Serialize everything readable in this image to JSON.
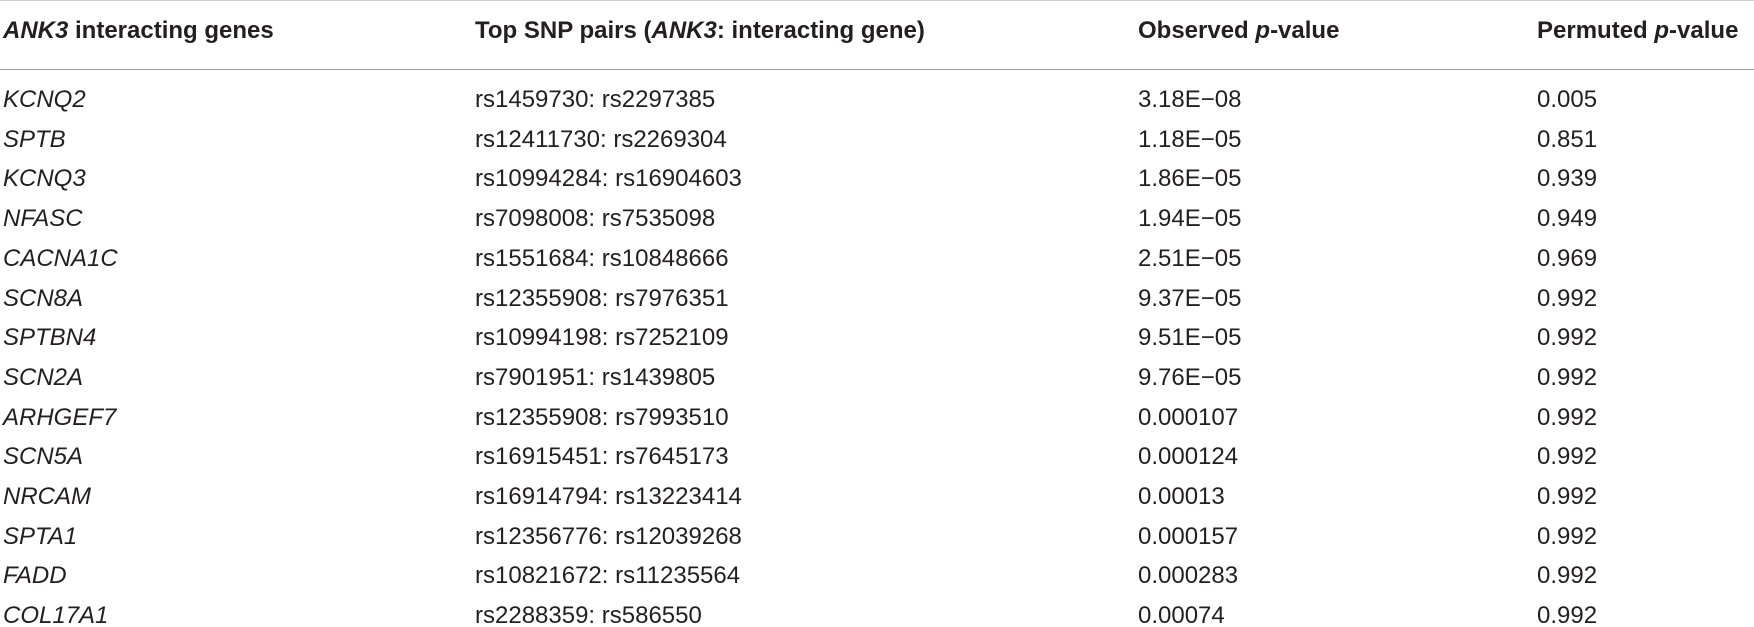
{
  "table": {
    "header": [
      [
        {
          "text": "ANK3",
          "italic": true
        },
        {
          "text": " interacting genes"
        }
      ],
      [
        {
          "text": "Top SNP pairs ("
        },
        {
          "text": "ANK3",
          "italic": true
        },
        {
          "text": ": interacting gene)"
        }
      ],
      [
        {
          "text": "Observed "
        },
        {
          "text": "p",
          "italic": true
        },
        {
          "text": "-value"
        }
      ],
      [
        {
          "text": "Permuted "
        },
        {
          "text": "p",
          "italic": true
        },
        {
          "text": "-value"
        }
      ]
    ],
    "rows": [
      [
        "KCNQ2",
        "rs1459730: rs2297385",
        "3.18E−08",
        "0.005"
      ],
      [
        "SPTB",
        "rs12411730: rs2269304",
        "1.18E−05",
        "0.851"
      ],
      [
        "KCNQ3",
        "rs10994284: rs16904603",
        "1.86E−05",
        "0.939"
      ],
      [
        "NFASC",
        "rs7098008: rs7535098",
        "1.94E−05",
        "0.949"
      ],
      [
        "CACNA1C",
        "rs1551684: rs10848666",
        "2.51E−05",
        "0.969"
      ],
      [
        "SCN8A",
        "rs12355908: rs7976351",
        "9.37E−05",
        "0.992"
      ],
      [
        "SPTBN4",
        "rs10994198: rs7252109",
        "9.51E−05",
        "0.992"
      ],
      [
        "SCN2A",
        "rs7901951: rs1439805",
        "9.76E−05",
        "0.992"
      ],
      [
        "ARHGEF7",
        "rs12355908: rs7993510",
        "0.000107",
        "0.992"
      ],
      [
        "SCN5A",
        "rs16915451: rs7645173",
        "0.000124",
        "0.992"
      ],
      [
        "NRCAM",
        "rs16914794: rs13223414",
        "0.00013",
        "0.992"
      ],
      [
        "SPTA1",
        "rs12356776: rs12039268",
        "0.000157",
        "0.992"
      ],
      [
        "FADD",
        "rs10821672: rs11235564",
        "0.000283",
        "0.992"
      ],
      [
        "COL17A1",
        "rs2288359: rs586550",
        "0.00074",
        "0.992"
      ]
    ]
  }
}
